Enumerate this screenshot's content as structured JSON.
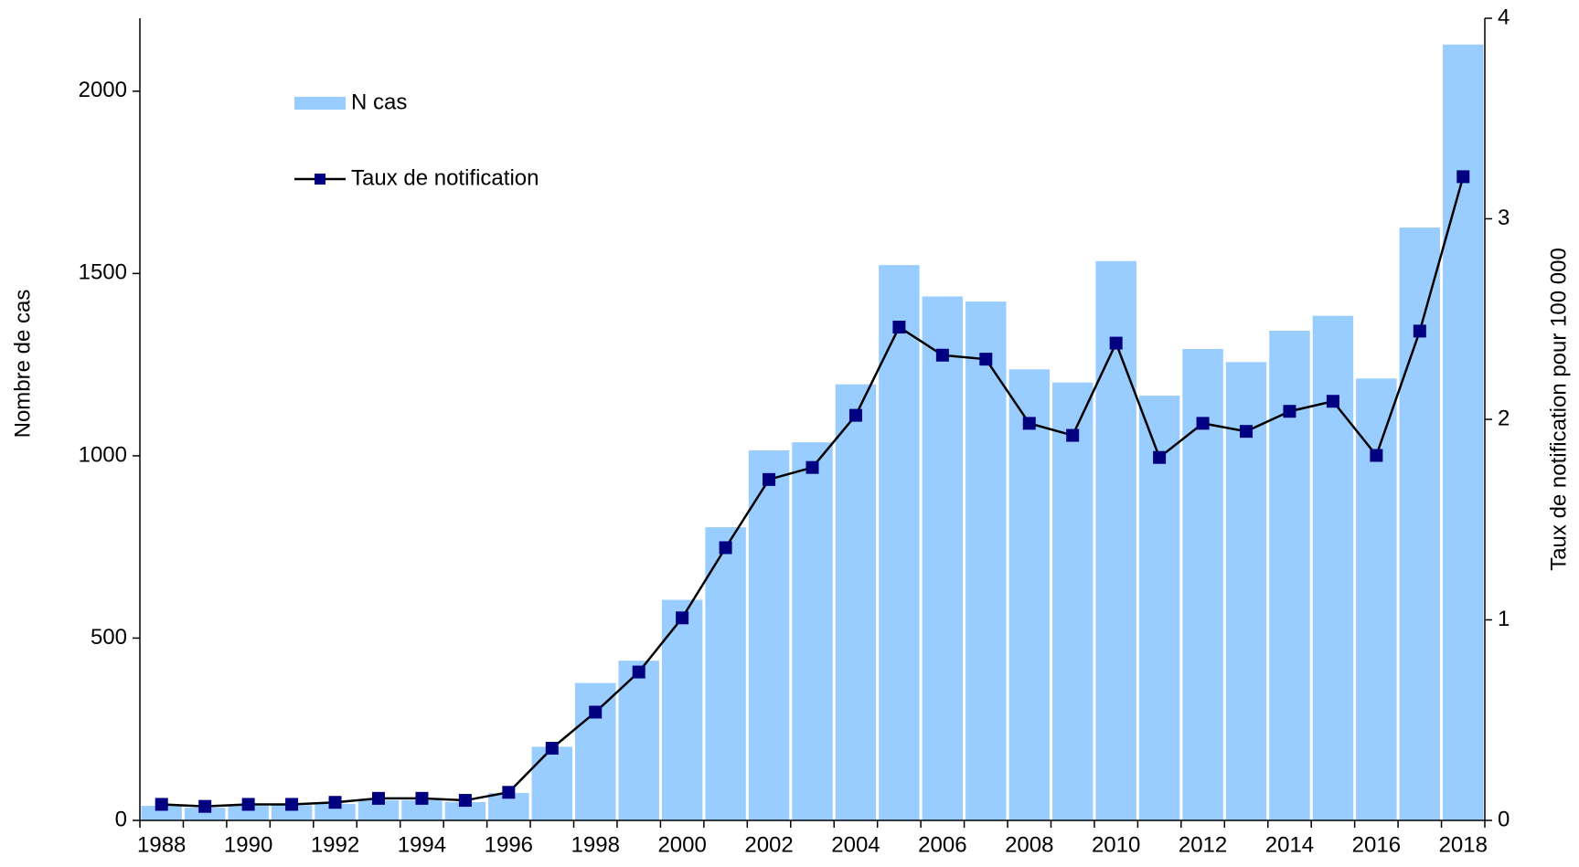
{
  "chart_data": {
    "type": "bar-line",
    "categories": [
      "1988",
      null,
      "1990",
      null,
      "1992",
      null,
      "1994",
      null,
      "1996",
      null,
      "1998",
      null,
      "2000",
      null,
      "2002",
      null,
      "2004",
      null,
      "2006",
      null,
      "2008",
      null,
      "2010",
      null,
      "2012",
      null,
      "2014",
      null,
      "2016",
      null,
      "2018"
    ],
    "series": [
      {
        "name": "N cas",
        "type": "bar",
        "color": "#99ccff",
        "values": [
          40,
          35,
          40,
          42,
          45,
          55,
          55,
          50,
          75,
          202,
          377,
          438,
          605,
          804,
          1015,
          1037,
          1196,
          1523,
          1437,
          1423,
          1237,
          1201,
          1534,
          1165,
          1293,
          1257,
          1343,
          1384,
          1212,
          1626,
          2128
        ]
      },
      {
        "name": "Taux de notification",
        "type": "line",
        "axis": "y2",
        "color": "#000080",
        "values": [
          0.08,
          0.07,
          0.08,
          0.08,
          0.09,
          0.11,
          0.11,
          0.1,
          0.14,
          0.36,
          0.54,
          0.74,
          1.01,
          1.36,
          1.7,
          1.76,
          2.02,
          2.46,
          2.32,
          2.3,
          1.98,
          1.92,
          2.38,
          1.81,
          1.98,
          1.94,
          2.04,
          2.09,
          1.82,
          2.44,
          3.21
        ]
      }
    ],
    "ylabel": "Nombre de cas",
    "y2label": "Taux de notification pour 100 000",
    "ylim": [
      0,
      2200
    ],
    "yticks": [
      0,
      500,
      1000,
      1500,
      2000
    ],
    "y2lim": [
      0,
      4
    ],
    "y2ticks": [
      0,
      1,
      2,
      3,
      4
    ],
    "legend": "upper left"
  }
}
